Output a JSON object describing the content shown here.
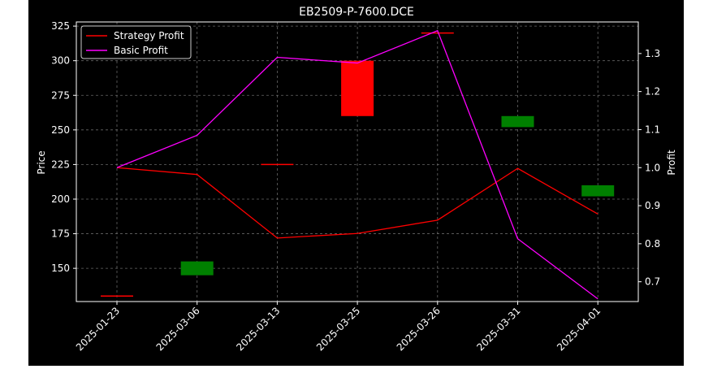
{
  "chart_data": {
    "type": "candlestick",
    "title": "EB2509-P-7600.DCE",
    "xlabel": "",
    "ylabel_left": "Price",
    "ylabel_right": "Profit",
    "categories": [
      "2025-01-23",
      "2025-03-06",
      "2025-03-13",
      "2025-03-25",
      "2025-03-26",
      "2025-03-31",
      "2025-04-01"
    ],
    "price_axis": {
      "ylim": [
        126,
        328
      ],
      "ticks": [
        150,
        175,
        200,
        225,
        250,
        275,
        300,
        325
      ]
    },
    "profit_axis": {
      "ylim": [
        0.648,
        1.383
      ],
      "ticks": [
        0.7,
        0.8,
        0.9,
        1.0,
        1.1,
        1.2,
        1.3
      ]
    },
    "candles": [
      {
        "date": "2025-01-23",
        "open": 130,
        "close": 130,
        "color": "red"
      },
      {
        "date": "2025-03-06",
        "open": 145,
        "close": 155,
        "color": "green"
      },
      {
        "date": "2025-03-13",
        "open": 225,
        "close": 225,
        "color": "red"
      },
      {
        "date": "2025-03-25",
        "open": 300,
        "close": 260,
        "color": "red"
      },
      {
        "date": "2025-03-26",
        "open": 320,
        "close": 320,
        "color": "red"
      },
      {
        "date": "2025-03-31",
        "open": 252,
        "close": 260,
        "color": "green"
      },
      {
        "date": "2025-04-01",
        "open": 202,
        "close": 210,
        "color": "green"
      }
    ],
    "series": [
      {
        "name": "Strategy Profit",
        "axis": "right",
        "color": "#ff0000",
        "values": [
          1.0,
          0.982,
          0.815,
          0.827,
          0.862,
          0.998,
          0.878
        ]
      },
      {
        "name": "Basic Profit",
        "axis": "right",
        "color": "#ff00ff",
        "values": [
          1.0,
          1.085,
          1.29,
          1.275,
          1.36,
          0.813,
          0.655
        ]
      }
    ],
    "grid": true,
    "legend_position": "top-left",
    "colors": {
      "background": "#000000",
      "foreground": "#ffffff",
      "up": "#008000",
      "down": "#ff0000",
      "grid": "#808080"
    }
  }
}
